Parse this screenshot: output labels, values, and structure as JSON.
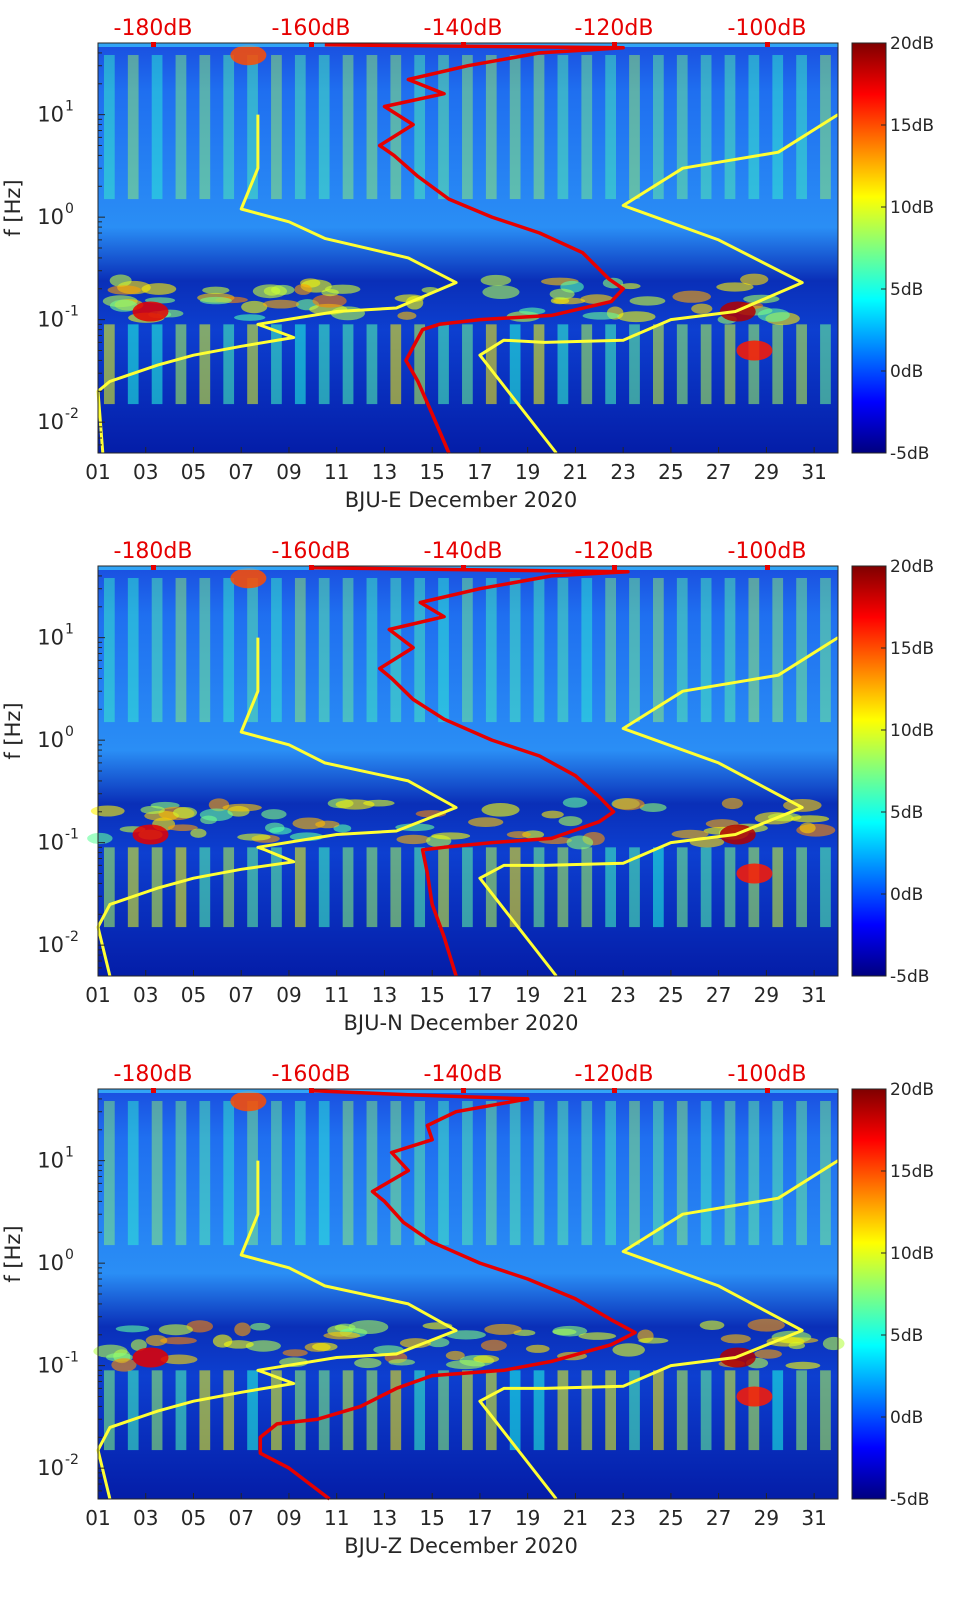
{
  "chart_data": [
    {
      "type": "heatmap",
      "xlabel": "BJU-E December 2020",
      "ylabel": "f [Hz]",
      "x_ticks": [
        "01",
        "03",
        "05",
        "07",
        "09",
        "11",
        "13",
        "15",
        "17",
        "19",
        "21",
        "23",
        "25",
        "27",
        "29",
        "31"
      ],
      "x_range_days": [
        1,
        32
      ],
      "y_scale": "log",
      "y_range_hz": [
        0.005,
        50
      ],
      "y_ticks": [
        {
          "base": "10",
          "exp": "-2"
        },
        {
          "base": "10",
          "exp": "-1"
        },
        {
          "base": "10",
          "exp": "0"
        },
        {
          "base": "10",
          "exp": "1"
        }
      ],
      "top_axis_ticks": [
        "-180dB",
        "-160dB",
        "-140dB",
        "-120dB",
        "-100dB"
      ],
      "colorbar_ticks": [
        "20dB",
        "15dB",
        "10dB",
        "5dB",
        "0dB",
        "-5dB"
      ],
      "colorbar_range_db": [
        -5,
        20
      ],
      "colormap": "jet",
      "series": [
        {
          "color": "#ffff33",
          "points": [
            [
              1.2,
              0.005
            ],
            [
              1.0,
              0.02
            ],
            [
              1.5,
              0.025
            ],
            [
              3.5,
              0.036
            ],
            [
              5,
              0.045
            ],
            [
              7,
              0.055
            ],
            [
              9.2,
              0.067
            ],
            [
              8,
              0.085
            ],
            [
              7.7,
              0.09
            ],
            [
              11,
              0.12
            ],
            [
              13.5,
              0.13
            ],
            [
              16,
              0.23
            ],
            [
              14,
              0.4
            ],
            [
              10.5,
              0.62
            ],
            [
              9,
              0.9
            ],
            [
              7,
              1.2
            ],
            [
              7.7,
              3
            ],
            [
              7.7,
              10
            ]
          ]
        },
        {
          "color": "#ffff33",
          "points": [
            [
              20.2,
              0.005
            ],
            [
              17,
              0.045
            ],
            [
              18,
              0.063
            ],
            [
              19.7,
              0.06
            ],
            [
              23,
              0.063
            ],
            [
              25,
              0.1
            ],
            [
              27.7,
              0.12
            ],
            [
              30.5,
              0.23
            ],
            [
              27,
              0.6
            ],
            [
              23,
              1.3
            ],
            [
              25.5,
              3
            ],
            [
              29.5,
              4.3
            ],
            [
              32,
              10
            ]
          ]
        },
        {
          "color": "#e60000",
          "points": [
            [
              15.7,
              0.005
            ],
            [
              15,
              0.012
            ],
            [
              14.4,
              0.025
            ],
            [
              13.9,
              0.04
            ],
            [
              14.6,
              0.08
            ],
            [
              15.3,
              0.09
            ],
            [
              17,
              0.1
            ],
            [
              20,
              0.11
            ],
            [
              22.5,
              0.15
            ],
            [
              23,
              0.2
            ],
            [
              22.4,
              0.25
            ],
            [
              21.3,
              0.45
            ],
            [
              19.5,
              0.7
            ],
            [
              17.5,
              1.0
            ],
            [
              15.7,
              1.5
            ],
            [
              14.4,
              2.5
            ],
            [
              13.4,
              4
            ],
            [
              12.8,
              5
            ],
            [
              14.2,
              8
            ],
            [
              13,
              12
            ],
            [
              15.5,
              16
            ],
            [
              14,
              22
            ],
            [
              16.5,
              30
            ],
            [
              19.5,
              40
            ],
            [
              23,
              45
            ],
            [
              10.5,
              48
            ]
          ]
        }
      ]
    },
    {
      "type": "heatmap",
      "xlabel": "BJU-N December 2020",
      "ylabel": "f [Hz]",
      "x_ticks": [
        "01",
        "03",
        "05",
        "07",
        "09",
        "11",
        "13",
        "15",
        "17",
        "19",
        "21",
        "23",
        "25",
        "27",
        "29",
        "31"
      ],
      "x_range_days": [
        1,
        32
      ],
      "y_scale": "log",
      "y_range_hz": [
        0.005,
        50
      ],
      "y_ticks": [
        {
          "base": "10",
          "exp": "-2"
        },
        {
          "base": "10",
          "exp": "-1"
        },
        {
          "base": "10",
          "exp": "0"
        },
        {
          "base": "10",
          "exp": "1"
        }
      ],
      "top_axis_ticks": [
        "-180dB",
        "-160dB",
        "-140dB",
        "-120dB",
        "-100dB"
      ],
      "colorbar_ticks": [
        "20dB",
        "15dB",
        "10dB",
        "5dB",
        "0dB",
        "-5dB"
      ],
      "colorbar_range_db": [
        -5,
        20
      ],
      "colormap": "jet",
      "series": [
        {
          "color": "#ffff33",
          "points": [
            [
              1.5,
              0.005
            ],
            [
              1.0,
              0.015
            ],
            [
              1.5,
              0.025
            ],
            [
              3.5,
              0.036
            ],
            [
              5,
              0.045
            ],
            [
              7,
              0.055
            ],
            [
              9.2,
              0.065
            ],
            [
              8,
              0.085
            ],
            [
              7.7,
              0.09
            ],
            [
              11,
              0.12
            ],
            [
              13.5,
              0.13
            ],
            [
              16,
              0.22
            ],
            [
              14,
              0.4
            ],
            [
              10.5,
              0.6
            ],
            [
              9,
              0.9
            ],
            [
              7,
              1.2
            ],
            [
              7.7,
              3
            ],
            [
              7.7,
              10
            ]
          ]
        },
        {
          "color": "#ffff33",
          "points": [
            [
              20.2,
              0.005
            ],
            [
              17,
              0.045
            ],
            [
              18,
              0.06
            ],
            [
              19.7,
              0.06
            ],
            [
              23,
              0.063
            ],
            [
              25,
              0.1
            ],
            [
              27.7,
              0.12
            ],
            [
              30.5,
              0.22
            ],
            [
              27,
              0.6
            ],
            [
              23,
              1.3
            ],
            [
              25.5,
              3
            ],
            [
              29.5,
              4.3
            ],
            [
              32,
              10
            ]
          ]
        },
        {
          "color": "#e60000",
          "points": [
            [
              16,
              0.005
            ],
            [
              15.5,
              0.012
            ],
            [
              15,
              0.025
            ],
            [
              14.8,
              0.05
            ],
            [
              14.6,
              0.085
            ],
            [
              15.5,
              0.09
            ],
            [
              17.5,
              0.1
            ],
            [
              20,
              0.11
            ],
            [
              22,
              0.16
            ],
            [
              22.6,
              0.2
            ],
            [
              22,
              0.28
            ],
            [
              21,
              0.45
            ],
            [
              19.5,
              0.7
            ],
            [
              17.5,
              1.0
            ],
            [
              15.5,
              1.6
            ],
            [
              14.2,
              2.5
            ],
            [
              13.3,
              4
            ],
            [
              12.8,
              5
            ],
            [
              14.2,
              8
            ],
            [
              13.2,
              12
            ],
            [
              15.5,
              16
            ],
            [
              14.5,
              22
            ],
            [
              17,
              30
            ],
            [
              20,
              40
            ],
            [
              23.2,
              44
            ],
            [
              10,
              48
            ]
          ]
        }
      ]
    },
    {
      "type": "heatmap",
      "xlabel": "BJU-Z December 2020",
      "ylabel": "f [Hz]",
      "x_ticks": [
        "01",
        "03",
        "05",
        "07",
        "09",
        "11",
        "13",
        "15",
        "17",
        "19",
        "21",
        "23",
        "25",
        "27",
        "29",
        "31"
      ],
      "x_range_days": [
        1,
        32
      ],
      "y_scale": "log",
      "y_range_hz": [
        0.005,
        50
      ],
      "y_ticks": [
        {
          "base": "10",
          "exp": "-2"
        },
        {
          "base": "10",
          "exp": "-1"
        },
        {
          "base": "10",
          "exp": "0"
        },
        {
          "base": "10",
          "exp": "1"
        }
      ],
      "top_axis_ticks": [
        "-180dB",
        "-160dB",
        "-140dB",
        "-120dB",
        "-100dB"
      ],
      "colorbar_ticks": [
        "20dB",
        "15dB",
        "10dB",
        "5dB",
        "0dB",
        "-5dB"
      ],
      "colorbar_range_db": [
        -5,
        20
      ],
      "colormap": "jet",
      "series": [
        {
          "color": "#ffff33",
          "points": [
            [
              1.5,
              0.005
            ],
            [
              1.0,
              0.015
            ],
            [
              1.5,
              0.025
            ],
            [
              3.5,
              0.036
            ],
            [
              5,
              0.045
            ],
            [
              7,
              0.055
            ],
            [
              9.2,
              0.067
            ],
            [
              8,
              0.085
            ],
            [
              7.7,
              0.09
            ],
            [
              11,
              0.12
            ],
            [
              13.5,
              0.13
            ],
            [
              16,
              0.22
            ],
            [
              14,
              0.4
            ],
            [
              10.5,
              0.6
            ],
            [
              9,
              0.9
            ],
            [
              7,
              1.2
            ],
            [
              7.7,
              3
            ],
            [
              7.7,
              10
            ]
          ]
        },
        {
          "color": "#ffff33",
          "points": [
            [
              20.2,
              0.005
            ],
            [
              17,
              0.045
            ],
            [
              18,
              0.06
            ],
            [
              19.7,
              0.06
            ],
            [
              23,
              0.063
            ],
            [
              25,
              0.1
            ],
            [
              27.7,
              0.12
            ],
            [
              30.5,
              0.22
            ],
            [
              27,
              0.6
            ],
            [
              23,
              1.3
            ],
            [
              25.5,
              3
            ],
            [
              29.5,
              4.3
            ],
            [
              32,
              10
            ]
          ]
        },
        {
          "color": "#e60000",
          "points": [
            [
              10.7,
              0.005
            ],
            [
              9,
              0.01
            ],
            [
              7.8,
              0.014
            ],
            [
              7.8,
              0.02
            ],
            [
              8.5,
              0.027
            ],
            [
              10.2,
              0.03
            ],
            [
              12,
              0.04
            ],
            [
              13.5,
              0.06
            ],
            [
              15,
              0.08
            ],
            [
              18,
              0.09
            ],
            [
              20,
              0.11
            ],
            [
              22.5,
              0.16
            ],
            [
              23.5,
              0.21
            ],
            [
              22.5,
              0.28
            ],
            [
              21,
              0.45
            ],
            [
              19,
              0.7
            ],
            [
              17,
              1.0
            ],
            [
              15,
              1.6
            ],
            [
              13.8,
              2.5
            ],
            [
              13,
              4
            ],
            [
              12.5,
              5
            ],
            [
              14,
              8
            ],
            [
              13.3,
              12
            ],
            [
              15,
              16
            ],
            [
              14.8,
              22
            ],
            [
              16,
              30
            ],
            [
              19,
              40
            ],
            [
              14,
              44
            ],
            [
              10,
              48
            ]
          ]
        }
      ]
    }
  ]
}
